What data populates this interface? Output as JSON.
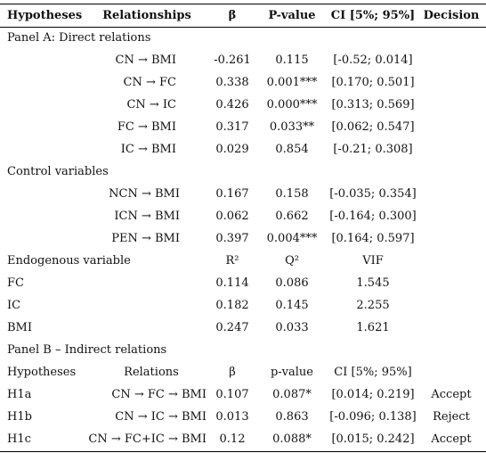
{
  "header": {
    "hypotheses": "Hypotheses",
    "relationships": "Relationships",
    "beta": "β",
    "pvalue": "P-value",
    "ci": "CI [5%; 95%]",
    "decision": "Decision"
  },
  "panel_a": {
    "title": "Panel A: Direct relations",
    "rows": [
      {
        "relation": "CN → BMI",
        "beta": "-0.261",
        "p": "0.115",
        "ci": "[-0.52; 0.014]"
      },
      {
        "relation": "CN → FC",
        "beta": "0.338",
        "p": "0.001***",
        "ci": "[0.170; 0.501]"
      },
      {
        "relation": "CN → IC",
        "beta": "0.426",
        "p": "0.000***",
        "ci": "[0.313; 0.569]"
      },
      {
        "relation": "FC → BMI",
        "beta": "0.317",
        "p": "0.033**",
        "ci": "[0.062; 0.547]"
      },
      {
        "relation": "IC → BMI",
        "beta": "0.029",
        "p": "0.854",
        "ci": "[-0.21; 0.308]"
      }
    ]
  },
  "control": {
    "title": "Control variables",
    "rows": [
      {
        "relation": "NCN → BMI",
        "beta": "0.167",
        "p": "0.158",
        "ci": "[-0.035; 0.354]"
      },
      {
        "relation": "ICN → BMI",
        "beta": "0.062",
        "p": "0.662",
        "ci": "[-0.164; 0.300]"
      },
      {
        "relation": "PEN → BMI",
        "beta": "0.397",
        "p": "0.004***",
        "ci": "[0.164; 0.597]"
      }
    ]
  },
  "endogenous": {
    "title": "Endogenous variable",
    "col_r2": "R²",
    "col_q2": "Q²",
    "col_vif": "VIF",
    "rows": [
      {
        "var": "FC",
        "r2": "0.114",
        "q2": "0.086",
        "vif": "1.545"
      },
      {
        "var": "IC",
        "r2": "0.182",
        "q2": "0.145",
        "vif": "2.255"
      },
      {
        "var": "BMI",
        "r2": "0.247",
        "q2": "0.033",
        "vif": "1.621"
      }
    ]
  },
  "panel_b": {
    "title": "Panel B – Indirect relations",
    "header": {
      "hypotheses": "Hypotheses",
      "relations": "Relations",
      "beta": "β",
      "pvalue": "p-value",
      "ci": "CI [5%; 95%]"
    },
    "rows": [
      {
        "hyp": "H1a",
        "relation": "CN → FC → BMI",
        "beta": "0.107",
        "p": "0.087*",
        "ci": "[0.014; 0.219]",
        "decision": "Accept"
      },
      {
        "hyp": "H1b",
        "relation": "CN → IC → BMI",
        "beta": "0.013",
        "p": "0.863",
        "ci": "[-0.096; 0.138]",
        "decision": "Reject"
      },
      {
        "hyp": "H1c",
        "relation": "CN → FC+IC → BMI",
        "beta": "0.12",
        "p": "0.088*",
        "ci": "[0.015; 0.242]",
        "decision": "Accept"
      }
    ]
  }
}
